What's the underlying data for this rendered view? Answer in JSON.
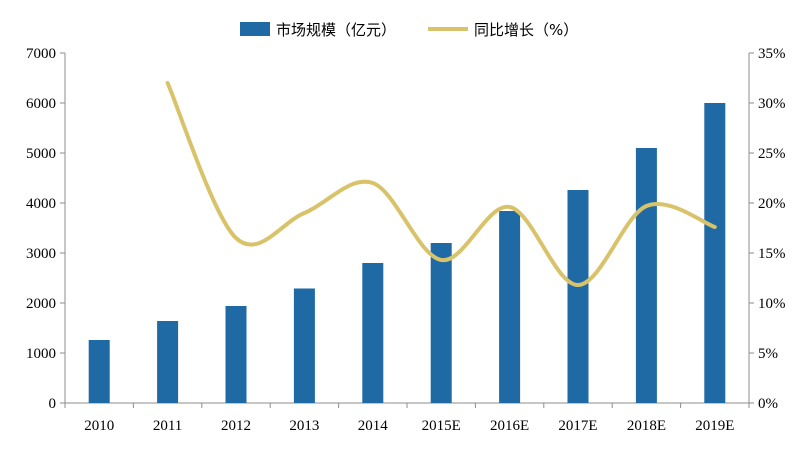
{
  "chart_data": {
    "type": "bar",
    "categories": [
      "2010",
      "2011",
      "2012",
      "2013",
      "2014",
      "2015E",
      "2016E",
      "2017E",
      "2018E",
      "2019E"
    ],
    "series": [
      {
        "name": "市场规模（亿元）",
        "type": "bar",
        "axis": "left",
        "color": "#1f6aa5",
        "values": [
          1260,
          1640,
          1940,
          2290,
          2800,
          3200,
          3840,
          4260,
          5100,
          6000
        ]
      },
      {
        "name": "同比增长（%）",
        "type": "line",
        "axis": "right",
        "color": "#d9c36a",
        "values": [
          null,
          32,
          16.5,
          19,
          22,
          14.3,
          19.6,
          11.8,
          19.7,
          17.6
        ]
      }
    ],
    "y_left": {
      "range": [
        0,
        7000
      ],
      "ticks": [
        "0",
        "1000",
        "2000",
        "3000",
        "4000",
        "5000",
        "6000",
        "7000"
      ]
    },
    "y_right": {
      "range": [
        0,
        35
      ],
      "ticks": [
        "0%",
        "5%",
        "10%",
        "15%",
        "20%",
        "25%",
        "30%",
        "35%"
      ]
    },
    "legend_position": "top-center",
    "grid": false
  }
}
